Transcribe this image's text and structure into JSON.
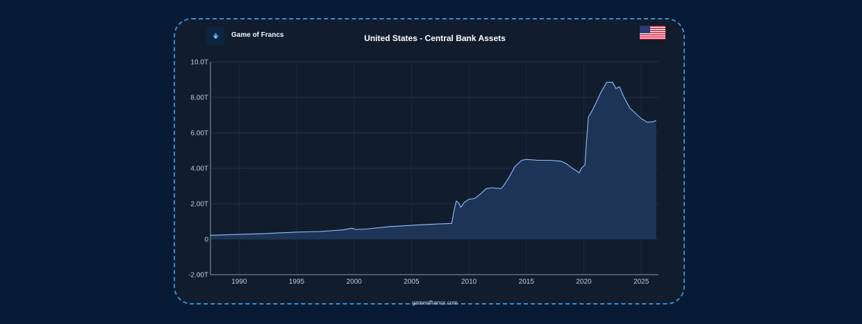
{
  "header": {
    "brand": "Game of Francs",
    "title": "United States - Central Bank Assets",
    "flag_icon": "us-flag-icon"
  },
  "footer": {
    "site": "gameoffrancs.com"
  },
  "colors": {
    "background": "#061a33",
    "card": "#111c2d",
    "border": "#2f8fe0",
    "line": "#8fc2ff",
    "fill": "#1e3457"
  },
  "chart_data": {
    "type": "area",
    "title": "United States - Central Bank Assets",
    "xlabel": "",
    "ylabel": "",
    "xlim": [
      1987.5,
      2026.5
    ],
    "ylim": [
      -2,
      10
    ],
    "grid": true,
    "legend": "none",
    "x_ticks": [
      "1990",
      "1995",
      "2000",
      "2005",
      "2010",
      "2015",
      "2020",
      "2025"
    ],
    "y_ticks": [
      "-2.00T",
      "0",
      "2.00T",
      "4.00T",
      "6.00T",
      "8.00T",
      "10.0T"
    ],
    "series": [
      {
        "unit": "trillion USD",
        "points": [
          [
            1987.5,
            0.22
          ],
          [
            1990,
            0.27
          ],
          [
            1992,
            0.31
          ],
          [
            1995,
            0.4
          ],
          [
            1997,
            0.43
          ],
          [
            1999,
            0.52
          ],
          [
            1999.8,
            0.62
          ],
          [
            2000.1,
            0.55
          ],
          [
            2001,
            0.57
          ],
          [
            2003,
            0.7
          ],
          [
            2005,
            0.78
          ],
          [
            2007,
            0.85
          ],
          [
            2008.5,
            0.89
          ],
          [
            2008.7,
            1.6
          ],
          [
            2008.9,
            2.15
          ],
          [
            2009.1,
            2.05
          ],
          [
            2009.3,
            1.8
          ],
          [
            2009.6,
            2.08
          ],
          [
            2010,
            2.25
          ],
          [
            2010.5,
            2.3
          ],
          [
            2011,
            2.55
          ],
          [
            2011.5,
            2.85
          ],
          [
            2012,
            2.9
          ],
          [
            2012.8,
            2.85
          ],
          [
            2013,
            3.0
          ],
          [
            2013.5,
            3.5
          ],
          [
            2014,
            4.1
          ],
          [
            2014.6,
            4.45
          ],
          [
            2015,
            4.5
          ],
          [
            2016,
            4.45
          ],
          [
            2017,
            4.45
          ],
          [
            2018,
            4.4
          ],
          [
            2018.5,
            4.25
          ],
          [
            2019,
            4.0
          ],
          [
            2019.6,
            3.75
          ],
          [
            2019.8,
            4.0
          ],
          [
            2020.1,
            4.2
          ],
          [
            2020.2,
            5.2
          ],
          [
            2020.4,
            6.9
          ],
          [
            2020.6,
            7.1
          ],
          [
            2021,
            7.6
          ],
          [
            2021.5,
            8.3
          ],
          [
            2022,
            8.85
          ],
          [
            2022.5,
            8.85
          ],
          [
            2022.8,
            8.5
          ],
          [
            2023.1,
            8.6
          ],
          [
            2023.5,
            8.0
          ],
          [
            2024,
            7.4
          ],
          [
            2024.5,
            7.1
          ],
          [
            2025,
            6.8
          ],
          [
            2025.5,
            6.6
          ],
          [
            2026,
            6.62
          ],
          [
            2026.3,
            6.7
          ]
        ]
      }
    ]
  }
}
